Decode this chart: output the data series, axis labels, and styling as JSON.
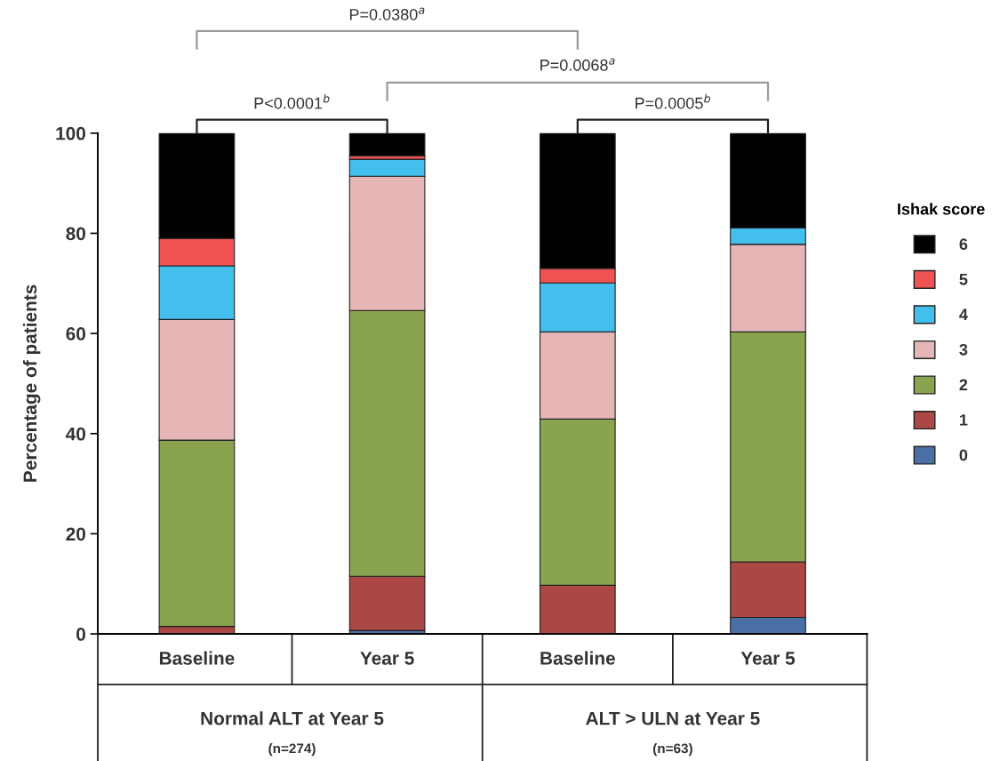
{
  "chart_data": {
    "type": "bar",
    "stacked": true,
    "ylabel": "Percentage of patients",
    "legend_title": "Ishak score",
    "legend": "right",
    "categories": [
      "Baseline",
      "Year 5",
      "Baseline",
      "Year 5"
    ],
    "series": [
      {
        "name": "0",
        "color": "#4a6fa5",
        "values": [
          0,
          0.7,
          0,
          3.3
        ]
      },
      {
        "name": "1",
        "color": "#ab4744",
        "values": [
          1.5,
          10.8,
          9.7,
          11.1
        ]
      },
      {
        "name": "2",
        "color": "#8aa34e",
        "values": [
          37.2,
          53.1,
          33.2,
          45.9
        ]
      },
      {
        "name": "3",
        "color": "#e5b6b5",
        "values": [
          24.1,
          26.8,
          17.4,
          17.5
        ]
      },
      {
        "name": "4",
        "color": "#42bfed",
        "values": [
          10.7,
          3.4,
          9.8,
          3.3
        ]
      },
      {
        "name": "5",
        "color": "#ef5353",
        "values": [
          5.5,
          0.7,
          2.9,
          0
        ]
      },
      {
        "name": "6",
        "color": "#000000",
        "values": [
          21.0,
          4.5,
          27.0,
          18.9
        ]
      }
    ],
    "ylim": [
      0,
      100
    ],
    "yticks": [
      0,
      20,
      40,
      60,
      80,
      100
    ],
    "grid": false,
    "annotations": [
      "Normal ALT at Year 5",
      "(n=274)",
      "ALT > ULN at Year 5",
      "(n=63)",
      "P<0.0001$^{b}$",
      "P=0.0005$^{b}$",
      "P=0.0068$^{a}$",
      "P=0.0380$^{a}$"
    ]
  }
}
